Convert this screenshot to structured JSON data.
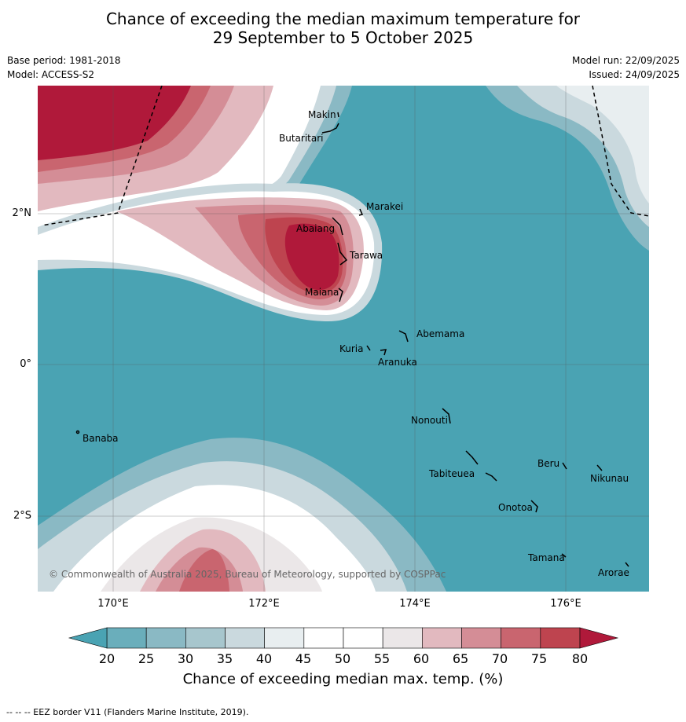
{
  "title_line1": "Chance of exceeding the median maximum temperature for",
  "title_line2": "29 September to 5 October 2025",
  "base_period": "Base period: 1981-2018",
  "model": "Model: ACCESS-S2",
  "model_run": "Model run: 22/09/2025",
  "issued": "Issued: 24/09/2025",
  "lat_labels": [
    "2°N",
    "0°",
    "2°S"
  ],
  "lon_labels": [
    "170°E",
    "172°E",
    "174°E",
    "176°E"
  ],
  "islands": [
    "Makin",
    "Butaritari",
    "Marakei",
    "Abaiang",
    "Tarawa",
    "Maiana",
    "Abemama",
    "Kuria",
    "Aranuka",
    "Nonouti",
    "Banaba",
    "Beru",
    "Tabiteuea",
    "Nikunau",
    "Onotoa",
    "Tamana",
    "Arorae"
  ],
  "copyright": "© Commonwealth of Australia 2025, Bureau of Meteorology, supported by COSPPac",
  "colorbar": {
    "ticks": [
      "20",
      "25",
      "30",
      "35",
      "40",
      "45",
      "50",
      "55",
      "60",
      "65",
      "70",
      "75",
      "80"
    ],
    "colors": [
      "#6aaebb",
      "#8ab9c4",
      "#a7c6cd",
      "#cad9de",
      "#e8eef0",
      "#ffffff",
      "#ffffff",
      "#ebe7e8",
      "#e2b9bf",
      "#d48d96",
      "#c9656f",
      "#be444f"
    ],
    "low_color": "#4aa3b3",
    "high_color": "#b0193a",
    "label": "Chance of exceeding median max. temp. (%)"
  },
  "footer": "--  --  -- EEZ border V11 (Flanders Marine Institute, 2019)."
}
